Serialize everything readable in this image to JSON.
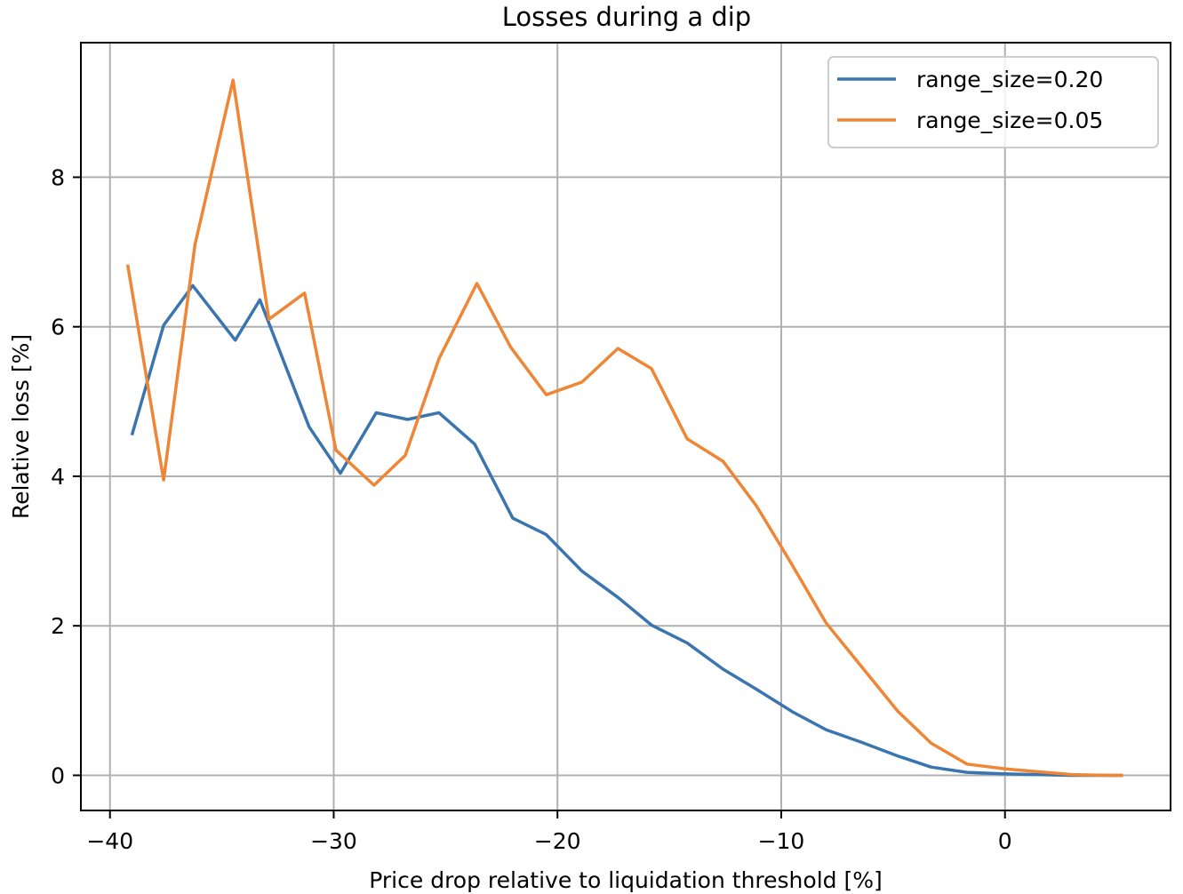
{
  "chart_data": {
    "type": "line",
    "title": "Losses during a dip",
    "xlabel": "Price drop relative to liquidation threshold [%]",
    "ylabel": "Relative loss [%]",
    "xlim": [
      -41.3,
      7.4
    ],
    "ylim": [
      -0.47,
      9.8
    ],
    "xticks": [
      -40,
      -30,
      -20,
      -10,
      0
    ],
    "xtick_labels": [
      "−40",
      "−30",
      "−20",
      "−10",
      "0"
    ],
    "yticks": [
      0,
      2,
      4,
      6,
      8
    ],
    "ytick_labels": [
      "0",
      "2",
      "4",
      "6",
      "8"
    ],
    "grid": true,
    "legend_position": "top-right",
    "series": [
      {
        "name": "range_size=0.20",
        "color": "#3a75af",
        "x": [
          -39.0,
          -37.6,
          -36.3,
          -34.4,
          -33.3,
          -31.1,
          -29.7,
          -28.1,
          -26.7,
          -25.3,
          -23.7,
          -22.0,
          -20.5,
          -18.9,
          -17.3,
          -15.8,
          -14.2,
          -12.6,
          -11.1,
          -9.5,
          -8.0,
          -6.4,
          -4.8,
          -3.3,
          -1.7,
          -0.1,
          1.4,
          3.0,
          4.6,
          5.2
        ],
        "values": [
          4.57,
          6.02,
          6.55,
          5.82,
          6.36,
          4.66,
          4.04,
          4.85,
          4.76,
          4.85,
          4.43,
          3.44,
          3.22,
          2.73,
          2.38,
          2.01,
          1.77,
          1.42,
          1.15,
          0.85,
          0.61,
          0.44,
          0.26,
          0.11,
          0.04,
          0.02,
          0.01,
          0.0,
          0.0,
          0.0
        ]
      },
      {
        "name": "range_size=0.05",
        "color": "#ef8636",
        "x": [
          -39.2,
          -37.6,
          -36.2,
          -34.5,
          -32.9,
          -31.3,
          -29.9,
          -28.2,
          -26.8,
          -25.3,
          -23.6,
          -22.1,
          -20.5,
          -18.9,
          -17.3,
          -15.8,
          -14.2,
          -12.6,
          -11.1,
          -9.6,
          -8.0,
          -6.4,
          -4.8,
          -3.3,
          -1.7,
          -0.1,
          1.4,
          3.0,
          4.6,
          5.2
        ],
        "values": [
          6.81,
          3.95,
          7.1,
          9.3,
          6.1,
          6.45,
          4.35,
          3.88,
          4.28,
          5.57,
          6.58,
          5.73,
          5.09,
          5.26,
          5.71,
          5.44,
          4.5,
          4.2,
          3.6,
          2.86,
          2.04,
          1.45,
          0.86,
          0.43,
          0.15,
          0.09,
          0.05,
          0.01,
          0.0,
          0.0
        ]
      }
    ]
  }
}
